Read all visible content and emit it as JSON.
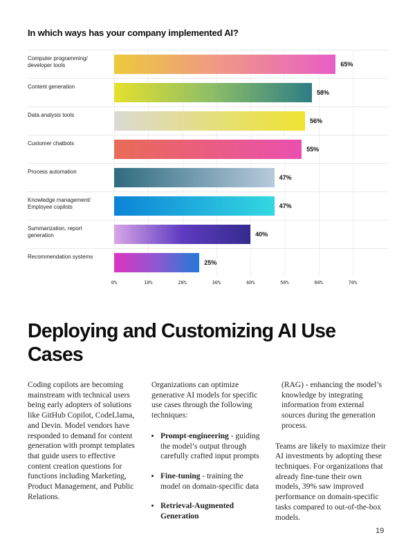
{
  "page": {
    "number": "19"
  },
  "chart_data": {
    "type": "bar",
    "orientation": "horizontal",
    "title": "In which ways has your company implemented AI?",
    "xlabel": "",
    "ylabel": "",
    "xlim": [
      0,
      70
    ],
    "grid": true,
    "categories": [
      "Computer programming/ developer tools",
      "Content generation",
      "Data analysis tools",
      "Customer chatbots",
      "Process automation",
      "Knowledge management/ Employee copilots",
      "Summarization, report generation",
      "Recommendation systems"
    ],
    "values": [
      65,
      58,
      56,
      55,
      47,
      47,
      40,
      25
    ],
    "ticks": [
      0,
      10,
      20,
      30,
      40,
      50,
      60,
      70
    ],
    "tick_labels": [
      "0%",
      "10%",
      "20%",
      "30%",
      "40%",
      "50%",
      "60%",
      "70%"
    ],
    "bars": [
      {
        "label": "Computer programming/ developer tools",
        "value": 65,
        "display": "65%",
        "gradient": [
          "#ecc93c",
          "#f0958a",
          "#e75ec6"
        ]
      },
      {
        "label": "Content generation",
        "value": 58,
        "display": "58%",
        "gradient": [
          "#e5e02d",
          "#8cbd67",
          "#2e7d85"
        ]
      },
      {
        "label": "Data analysis tools",
        "value": 56,
        "display": "56%",
        "gradient": [
          "#dbd9d3",
          "#efe32e"
        ]
      },
      {
        "label": "Customer chatbots",
        "value": 55,
        "display": "55%",
        "gradient": [
          "#e96b55",
          "#ea4fae"
        ]
      },
      {
        "label": "Process automation",
        "value": 47,
        "display": "47%",
        "gradient": [
          "#2f6c7e",
          "#b8cadd"
        ]
      },
      {
        "label": "Knowledge management/ Employee copilots",
        "value": 47,
        "display": "47%",
        "gradient": [
          "#0c83d6",
          "#33d8e2"
        ]
      },
      {
        "label": "Summarization, report generation",
        "value": 40,
        "display": "40%",
        "gradient": [
          "#d8a6e7",
          "#5e3bc0",
          "#352a8f"
        ]
      },
      {
        "label": "Recommendation systems",
        "value": 25,
        "display": "25%",
        "gradient": [
          "#dd35c0",
          "#8e58d2",
          "#2279d7"
        ]
      }
    ]
  },
  "section": {
    "heading": "Deploying and Customizing AI Use Cases",
    "col1": {
      "p1": "Coding copilots are becoming mainstream with technical users being early adopters of solutions like GitHub Copilot, CodeLlama, and Devin. Model vendors have responded to demand for content generation with prompt templates that guide users to effective content creation questions for functions including Marketing, Product Management, and Public Relations."
    },
    "col2": {
      "intro": "Organizations can optimize generative AI models for specific use cases through the following techniques:",
      "bullets": [
        {
          "term": "Prompt-engineering",
          "text": " - guiding the model’s output through carefully crafted input prompts"
        },
        {
          "term": "Fine-tuning",
          "text": " - training the model on domain-specific data"
        },
        {
          "term": "Retrieval-Augmented Generation",
          "text": ""
        }
      ]
    },
    "col3": {
      "p1": "(RAG) - enhancing the model’s knowledge by integrating information from external sources during the generation process.",
      "p2": "Teams are likely to maximize their AI investments by adopting these techniques. For organizations that already fine-tune their own models, 39% saw improved performance on domain-specific tasks compared to out-of-the-box models."
    }
  }
}
